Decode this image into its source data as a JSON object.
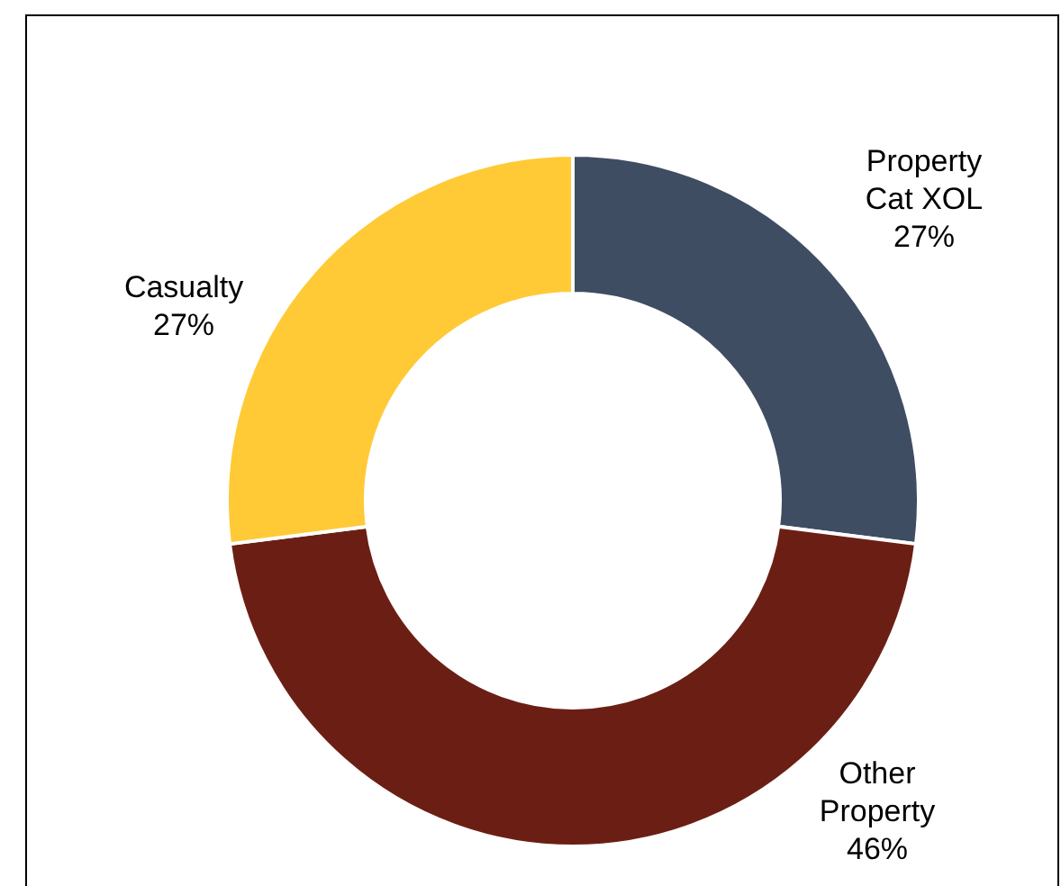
{
  "chart_data": {
    "type": "donut",
    "categories": [
      "Property Cat XOL",
      "Other Property",
      "Casualty"
    ],
    "values": [
      27,
      46,
      27
    ],
    "colors": [
      "#3f4d63",
      "#6b1f14",
      "#ffca35"
    ],
    "value_labels": [
      "27%",
      "46%",
      "27%"
    ]
  }
}
